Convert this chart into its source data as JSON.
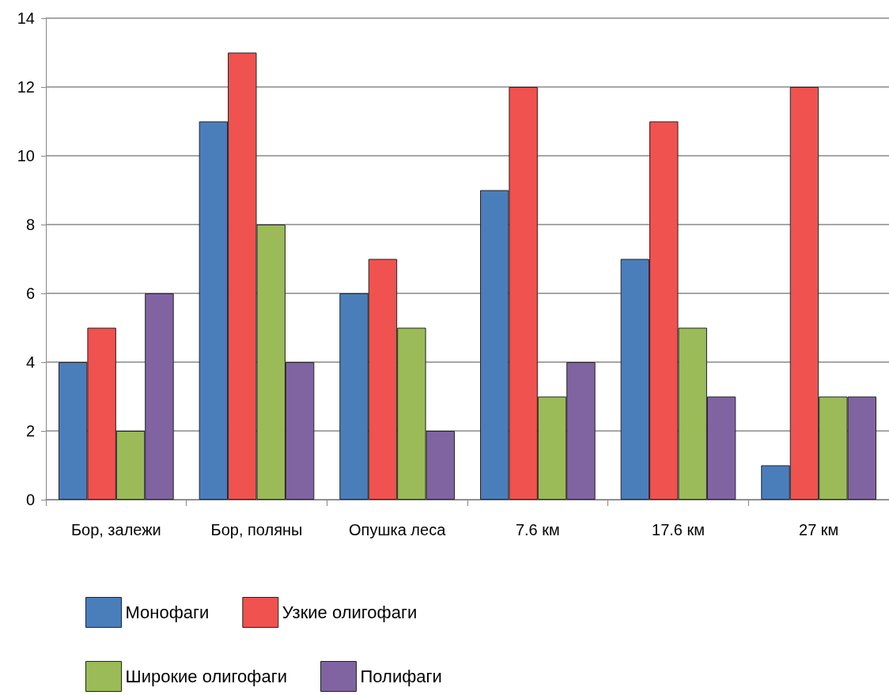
{
  "chart_data": {
    "type": "bar",
    "categories": [
      "Бор, залежи",
      "Бор, поляны",
      "Опушка леса",
      "7.6 км",
      "17.6 км",
      "27 км"
    ],
    "series": [
      {
        "name": "Монофаги",
        "color": "#4a7ebb",
        "values": [
          4,
          11,
          6,
          9,
          7,
          1
        ]
      },
      {
        "name": "Узкие олигофаги",
        "color": "#f0524f",
        "values": [
          5,
          13,
          7,
          12,
          11,
          12
        ]
      },
      {
        "name": "Широкие олигофаги",
        "color": "#9bbb59",
        "values": [
          2,
          8,
          5,
          3,
          5,
          3
        ]
      },
      {
        "name": "Полифаги",
        "color": "#8064a2",
        "values": [
          6,
          4,
          2,
          4,
          3,
          3
        ]
      }
    ],
    "ylim": [
      0,
      14
    ],
    "yticks": [
      0,
      2,
      4,
      6,
      8,
      10,
      12,
      14
    ],
    "grid": "y",
    "legend": "bottom"
  }
}
